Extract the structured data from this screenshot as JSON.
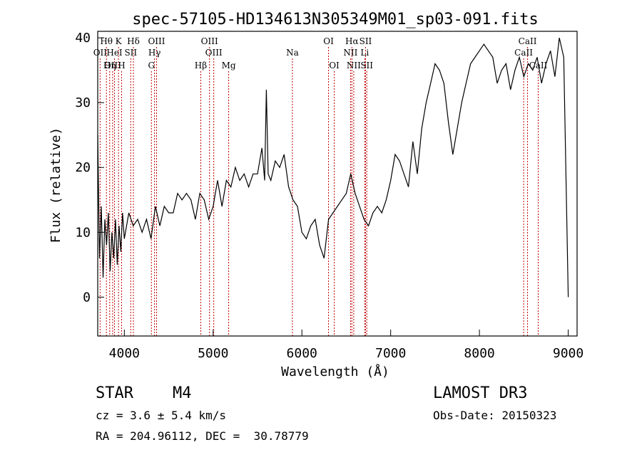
{
  "chart_data": {
    "type": "line",
    "title": "spec-57105-HD134613N305349M01_sp03-091.fits",
    "xlabel": "Wavelength (Å)",
    "ylabel": "Flux (relative)",
    "xlim": [
      3700,
      9100
    ],
    "ylim": [
      -6,
      41
    ],
    "xticks": [
      4000,
      5000,
      6000,
      7000,
      8000,
      9000
    ],
    "yticks": [
      0,
      10,
      20,
      30,
      40
    ],
    "series": [
      {
        "name": "spectrum",
        "x": [
          3700,
          3720,
          3740,
          3760,
          3780,
          3800,
          3820,
          3840,
          3860,
          3880,
          3900,
          3920,
          3940,
          3960,
          3980,
          4000,
          4050,
          4100,
          4150,
          4200,
          4250,
          4300,
          4350,
          4400,
          4450,
          4500,
          4550,
          4600,
          4650,
          4700,
          4750,
          4800,
          4850,
          4900,
          4950,
          5000,
          5050,
          5100,
          5150,
          5200,
          5250,
          5300,
          5350,
          5400,
          5450,
          5500,
          5550,
          5580,
          5600,
          5620,
          5650,
          5700,
          5750,
          5800,
          5850,
          5900,
          5950,
          6000,
          6050,
          6100,
          6150,
          6200,
          6250,
          6300,
          6350,
          6400,
          6450,
          6500,
          6550,
          6600,
          6650,
          6700,
          6750,
          6800,
          6850,
          6900,
          6950,
          7000,
          7050,
          7100,
          7150,
          7200,
          7250,
          7300,
          7350,
          7400,
          7450,
          7500,
          7550,
          7600,
          7650,
          7700,
          7750,
          7800,
          7850,
          7900,
          7950,
          8000,
          8050,
          8100,
          8150,
          8200,
          8250,
          8300,
          8350,
          8400,
          8450,
          8500,
          8550,
          8600,
          8650,
          8700,
          8750,
          8800,
          8850,
          8900,
          8950,
          9000
        ],
        "values": [
          25,
          6,
          14,
          3,
          12,
          8,
          13,
          4,
          10,
          6,
          12,
          5,
          11,
          7,
          13,
          9,
          13,
          11,
          12,
          10,
          12,
          9,
          14,
          11,
          14,
          13,
          13,
          16,
          15,
          16,
          15,
          12,
          16,
          15,
          12,
          14,
          18,
          14,
          18,
          17,
          20,
          18,
          19,
          17,
          19,
          19,
          23,
          18,
          32,
          19,
          18,
          21,
          20,
          22,
          17,
          15,
          14,
          10,
          9,
          11,
          12,
          8,
          6,
          12,
          13,
          14,
          15,
          16,
          19,
          16,
          14,
          12,
          11,
          13,
          14,
          13,
          15,
          18,
          22,
          21,
          19,
          17,
          24,
          19,
          26,
          30,
          33,
          36,
          35,
          33,
          27,
          22,
          26,
          30,
          33,
          36,
          37,
          38,
          39,
          38,
          37,
          33,
          35,
          36,
          32,
          35,
          37,
          34,
          36,
          35,
          37,
          33,
          36,
          38,
          34,
          40,
          37,
          0
        ]
      }
    ],
    "emission_lines": [
      {
        "name": "Hθ",
        "x": 3798,
        "row": 0
      },
      {
        "name": "K",
        "x": 3934,
        "row": 0
      },
      {
        "name": "Hδ",
        "x": 4102,
        "row": 0
      },
      {
        "name": "OII",
        "x": 3727,
        "row": 1
      },
      {
        "name": "HeI",
        "x": 3889,
        "row": 1
      },
      {
        "name": "SII",
        "x": 4072,
        "row": 1
      },
      {
        "name": "OIII",
        "x": 3868,
        "row": 2
      },
      {
        "name": "Hη",
        "x": 3835,
        "row": 2
      },
      {
        "name": "H",
        "x": 3969,
        "row": 2
      },
      {
        "name": "OIII",
        "x": 4363,
        "row": 0
      },
      {
        "name": "Hγ",
        "x": 4340,
        "row": 1
      },
      {
        "name": "G",
        "x": 4305,
        "row": 2
      },
      {
        "name": "OIII",
        "x": 4959,
        "row": 0
      },
      {
        "name": "OIII",
        "x": 5007,
        "row": 1
      },
      {
        "name": "Hβ",
        "x": 4861,
        "row": 2
      },
      {
        "name": "Mg",
        "x": 5175,
        "row": 2
      },
      {
        "name": "Na",
        "x": 5893,
        "row": 1
      },
      {
        "name": "OI",
        "x": 6300,
        "row": 0
      },
      {
        "name": "OI",
        "x": 6364,
        "row": 2
      },
      {
        "name": "Hα",
        "x": 6563,
        "row": 0
      },
      {
        "name": "SII",
        "x": 6717,
        "row": 0
      },
      {
        "name": "NII",
        "x": 6548,
        "row": 1
      },
      {
        "name": "Li",
        "x": 6708,
        "row": 1
      },
      {
        "name": "NII",
        "x": 6584,
        "row": 2
      },
      {
        "name": "SII",
        "x": 6731,
        "row": 2
      },
      {
        "name": "CaII",
        "x": 8542,
        "row": 0
      },
      {
        "name": "CaII",
        "x": 8498,
        "row": 1
      },
      {
        "name": "CaII",
        "x": 8662,
        "row": 2
      }
    ]
  },
  "info": {
    "class": "STAR",
    "subclass": "M4",
    "survey": "LAMOST DR3",
    "cz": "cz = 3.6 ± 5.4 km/s",
    "obs_date": "Obs-Date: 20150323",
    "coords": "RA = 204.96112, DEC =  30.78779"
  },
  "colors": {
    "axis": "#000000",
    "line": "#000000",
    "marker": "#c00000"
  }
}
